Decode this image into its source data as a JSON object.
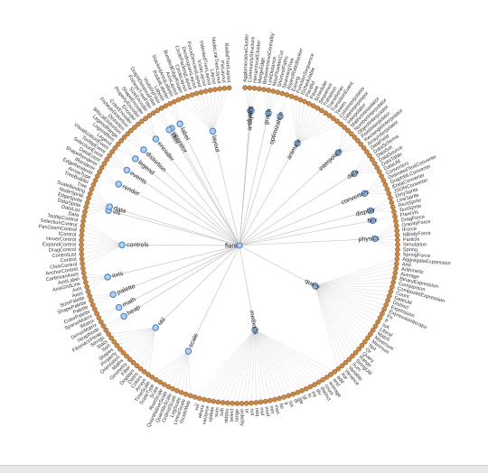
{
  "diagram": {
    "type": "radial-tree",
    "root": "flare",
    "colors": {
      "inner_fill": "#b0d0ee",
      "inner_stroke": "#4f84c4",
      "leaf_fill": "#c8894a",
      "link": "#bdbdbd"
    },
    "groups": [
      {
        "name": "animate",
        "angle": 22,
        "leaves": [
          "Easing",
          "FunctionSequence",
          "ISchedulable",
          "Parallel",
          "Pause",
          "Scheduler",
          "Sequence",
          "Transition",
          "Transitioner",
          "TransitionEvent",
          "Tween",
          "ColorInterpolator",
          "DateInterpolator"
        ]
      },
      {
        "name": "interpolate",
        "angle": 40,
        "leaves": [
          "Interpolator",
          "MatrixInterpolator",
          "NumberInterpolator",
          "ObjectInterpolator",
          "PointInterpolator",
          "RectangleInterpolator",
          "ArrayInterpolator"
        ]
      },
      {
        "name": "data",
        "angle": 60,
        "leaves": [
          "DataField",
          "DataSchema",
          "DataSet",
          "DataSource",
          "DataTable",
          "DataUtil"
        ]
      },
      {
        "name": "converters",
        "angle": 64,
        "leaves": [
          "Converters",
          "DelimitedTextConverter",
          "GraphMLConverter",
          "IDataConverter",
          "JSONConverter"
        ]
      },
      {
        "name": "display",
        "angle": 75,
        "leaves": [
          "DirtySprite",
          "LineSprite",
          "RectSprite",
          "TextSprite"
        ]
      },
      {
        "name": "flex",
        "angle": 83,
        "leaves": [
          "FlareVis"
        ]
      },
      {
        "name": "physics",
        "angle": 92,
        "leaves": [
          "DragForce",
          "GravityForce",
          "IForce",
          "NBodyForce",
          "Particle",
          "Simulation",
          "Spring",
          "SpringForce"
        ]
      },
      {
        "name": "query",
        "angle": 118,
        "leaves": [
          "AggregateExpression",
          "And",
          "Arithmetic",
          "Average",
          "BinaryExpression",
          "Comparison",
          "CompositeExpression",
          "Count",
          "DateUtil",
          "Distinct",
          "Expression",
          "ExpressionIterator",
          "Fn",
          "If",
          "IsA",
          "Literal",
          "Match",
          "Maximum",
          "Minimum",
          "Not",
          "Or",
          "Query",
          "Range",
          "StringUtil",
          "Sum",
          "Variable",
          "Variance",
          "Xor"
        ]
      },
      {
        "name": "methods",
        "angle": 152,
        "leaves": [
          "add",
          "and",
          "average",
          "count",
          "distinct",
          "div",
          "eq",
          "fn",
          "gt",
          "gte",
          "iff",
          "isa",
          "lt",
          "lte",
          "max",
          "min",
          "mod",
          "mul",
          "neq",
          "not",
          "or",
          "orderby",
          "range",
          "select",
          "stddev",
          "sub",
          "sum",
          "update",
          "variance",
          "where",
          "xor",
          "_"
        ]
      },
      {
        "name": "scale",
        "angle": 186,
        "leaves": [
          "IScaleMap",
          "LinearScale",
          "LogScale",
          "OrdinalScale",
          "QuantileScale",
          "QuantitativeScale",
          "RootScale",
          "Scale",
          "ScaleType",
          "TimeScale"
        ]
      },
      {
        "name": "util",
        "angle": 210,
        "leaves": [
          "Arrays",
          "Colors",
          "Dates",
          "Displays",
          "Filter",
          "Geometry",
          "Maths",
          "Orientation",
          "Property",
          "Shapes",
          "Sort",
          "Stats",
          "Strings"
        ]
      },
      {
        "name": "heap",
        "angle": 226,
        "leaves": [
          "FibonacciHeap",
          "HeapNode"
        ]
      },
      {
        "name": "math",
        "angle": 232,
        "leaves": [
          "DenseMatrix",
          "IMatrix",
          "SparseMatrix"
        ]
      },
      {
        "name": "palette",
        "angle": 238,
        "leaves": [
          "ColorPalette",
          "Palette",
          "ShapePalette",
          "SizePalette"
        ]
      },
      {
        "name": "axis",
        "angle": 252,
        "leaves": [
          "Axes",
          "Axis",
          "AxisGridLine",
          "AxisLabel",
          "CartesianAxes"
        ]
      },
      {
        "name": "controls",
        "angle": 268,
        "leaves": [
          "AnchorControl",
          "ClickControl",
          "Control",
          "ControlList",
          "DragControl",
          "ExpandControl",
          "HoverControl",
          "IControl",
          "PanZoomControl",
          "SelectionControl",
          "TooltipControl"
        ]
      },
      {
        "name": "data",
        "angle": 288,
        "leaves": [
          "Data",
          "DataList",
          "DataSprite",
          "EdgeSprite",
          "NodeSprite",
          "ScaleBinding",
          "Tree",
          "TreeBuilder"
        ]
      },
      {
        "name": "render",
        "angle": 298,
        "leaves": [
          "ArrowType",
          "EdgeRenderer",
          "IRenderer",
          "ShapeRenderer"
        ]
      },
      {
        "name": "events",
        "angle": 304,
        "leaves": [
          "DataEvent",
          "SelectionEvent",
          "TooltipEvent",
          "VisualizationEvent"
        ]
      },
      {
        "name": "legend",
        "angle": 312,
        "leaves": [
          "Legend",
          "LegendItem",
          "LegendRange"
        ]
      },
      {
        "name": "distortion",
        "angle": 326,
        "leaves": [
          "BifocalDistortion",
          "Distortion",
          "FisheyeDistortion"
        ]
      },
      {
        "name": "encoder",
        "angle": 332,
        "leaves": [
          "ColorEncoder",
          "Encoder",
          "PropertyEncoder",
          "ShapeEncoder",
          "SizeEncoder"
        ]
      },
      {
        "name": "filter",
        "angle": 338,
        "leaves": [
          "FisheyeTreeFilter",
          "GraphDistanceFilter",
          "VisibilityFilter"
        ]
      },
      {
        "name": "label",
        "angle": 344,
        "leaves": [
          "Labeler",
          "RadialLabeler",
          "StackedAreaLabeler"
        ]
      },
      {
        "name": "layout",
        "angle": 352,
        "leaves": [
          "AxisLayout",
          "BundledEdgeRouter",
          "CircleLayout",
          "CirclePackingLayout",
          "DendrogramLayout",
          "ForceDirectedLayout",
          "IcicleLayout",
          "IndentedTreeLayout",
          "Layout",
          "NodeLinkTreeLayout",
          "PieLayout",
          "RadialTreeLayout"
        ]
      },
      {
        "name": "operator",
        "angle": 330,
        "leaves": []
      },
      {
        "name": "cluster",
        "angle": 2,
        "leaves": [
          "AgglomerativeCluster",
          "CommunityStructure",
          "HierarchicalCluster",
          "MergeEdge"
        ]
      },
      {
        "name": "graph",
        "angle": 7,
        "leaves": [
          "BetweennessCentrality",
          "LinkDistance",
          "MaxFlowMinCut",
          "ShortestPaths",
          "SpanningTree"
        ]
      },
      {
        "name": "optimization",
        "angle": 13,
        "leaves": [
          "AspectRatioBanker"
        ]
      },
      {
        "name": "analytics",
        "angle": 5,
        "leaves": []
      },
      {
        "name": "vis",
        "angle": 285,
        "leaves": []
      }
    ]
  }
}
